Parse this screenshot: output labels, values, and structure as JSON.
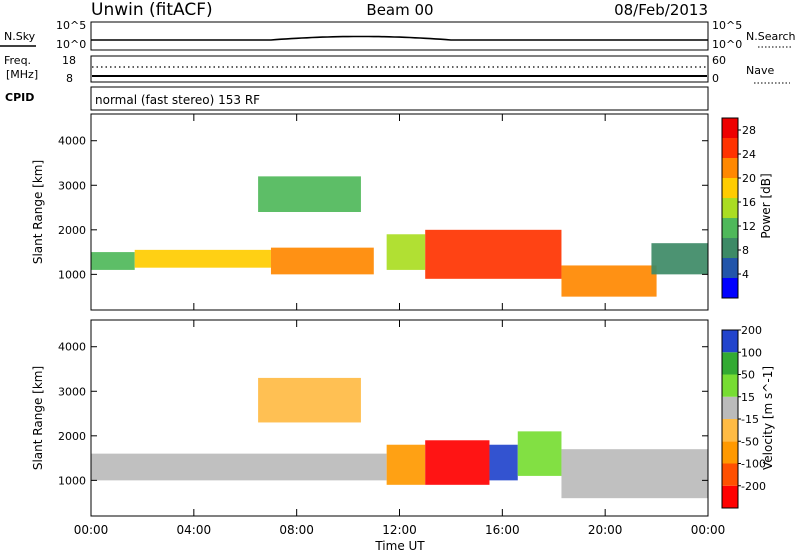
{
  "header": {
    "station": "Unwin (fitACF)",
    "beam": "Beam 00",
    "date": "08/Feb/2013"
  },
  "noise_panel": {
    "left_label": "N.Sky",
    "left_ticks": [
      "10^5",
      "10^0"
    ],
    "right_label": "N.Search",
    "right_ticks": [
      "10^5",
      "10^0"
    ]
  },
  "freq_panel": {
    "left_label_1": "Freq.",
    "left_label_2": "[MHz]",
    "left_ticks": [
      "18",
      "8"
    ],
    "right_label": "Nave",
    "right_ticks": [
      "60",
      "0"
    ]
  },
  "cpid": {
    "label": "CPID",
    "value": "normal (fast stereo) 153 RF"
  },
  "colors": {
    "velocity": [
      "#ff0000",
      "#ff5000",
      "#ff9900",
      "#ffbb44",
      "#bbbbbb",
      "#77dd33",
      "#33aa33",
      "#2244cc"
    ],
    "power": [
      "#0000ff",
      "#2255aa",
      "#3d8a66",
      "#4fb85a",
      "#aadd22",
      "#ffcc00",
      "#ff8800",
      "#ff3300",
      "#ee0000"
    ]
  },
  "chart_data": [
    {
      "type": "heatmap",
      "xlabel": "",
      "ylabel": "Slant Range [km]",
      "y_ticks": [
        "1000",
        "2000",
        "3000",
        "4000"
      ],
      "colorbar": {
        "label": "Power [dB]",
        "ticks": [
          "4",
          "8",
          "12",
          "16",
          "20",
          "24",
          "28"
        ],
        "range": [
          0,
          30
        ]
      },
      "x_range": [
        "00:00",
        "24:00"
      ],
      "y_range": [
        200,
        4600
      ],
      "regions": [
        {
          "t0": 0.0,
          "t1": 1.7,
          "r0": 1100,
          "r1": 1500,
          "level": 12
        },
        {
          "t0": 1.7,
          "t1": 7.0,
          "r0": 1150,
          "r1": 1550,
          "level": 18
        },
        {
          "t0": 7.0,
          "t1": 11.0,
          "r0": 1000,
          "r1": 1600,
          "level": 20
        },
        {
          "t0": 6.5,
          "t1": 10.5,
          "r0": 2400,
          "r1": 3200,
          "level": 10
        },
        {
          "t0": 11.5,
          "t1": 13.0,
          "r0": 1100,
          "r1": 1900,
          "level": 16
        },
        {
          "t0": 13.0,
          "t1": 18.3,
          "r0": 900,
          "r1": 2000,
          "level": 26
        },
        {
          "t0": 18.3,
          "t1": 22.0,
          "r0": 500,
          "r1": 1200,
          "level": 20
        },
        {
          "t0": 21.8,
          "t1": 24.0,
          "r0": 1000,
          "r1": 1700,
          "level": 8
        }
      ]
    },
    {
      "type": "heatmap",
      "xlabel": "Time UT",
      "ylabel": "Slant Range [km]",
      "x_ticks": [
        "00:00",
        "04:00",
        "08:00",
        "12:00",
        "16:00",
        "20:00",
        "00:00"
      ],
      "y_ticks": [
        "1000",
        "2000",
        "3000",
        "4000"
      ],
      "colorbar": {
        "label": "Velocity [m s^-1]",
        "ticks": [
          "-200",
          "-100",
          "-50",
          "-15",
          "15",
          "50",
          "100",
          "200"
        ],
        "range": [
          -250,
          250
        ]
      },
      "x_range": [
        "00:00",
        "24:00"
      ],
      "y_range": [
        200,
        4600
      ],
      "regions": [
        {
          "t0": 0.0,
          "t1": 11.5,
          "r0": 1000,
          "r1": 1600,
          "level": 0
        },
        {
          "t0": 6.5,
          "t1": 10.5,
          "r0": 2300,
          "r1": 3300,
          "level": -30
        },
        {
          "t0": 11.5,
          "t1": 13.0,
          "r0": 900,
          "r1": 1800,
          "level": -80
        },
        {
          "t0": 13.0,
          "t1": 15.5,
          "r0": 900,
          "r1": 1900,
          "level": -200
        },
        {
          "t0": 15.5,
          "t1": 16.6,
          "r0": 1000,
          "r1": 1800,
          "level": 150
        },
        {
          "t0": 16.6,
          "t1": 18.3,
          "r0": 1100,
          "r1": 2100,
          "level": 40
        },
        {
          "t0": 18.3,
          "t1": 24.0,
          "r0": 600,
          "r1": 1700,
          "level": 0
        }
      ]
    }
  ]
}
